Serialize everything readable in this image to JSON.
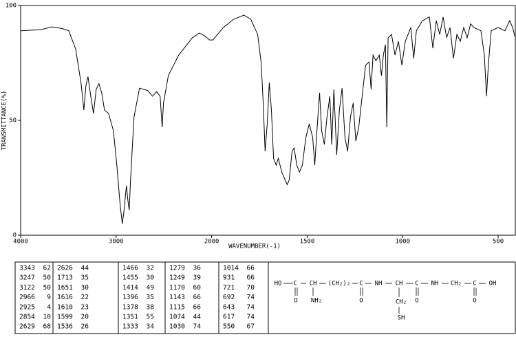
{
  "chart_data": {
    "type": "line",
    "x_label": "WAVENUMBER(-1)",
    "y_label": "TRANSMITTANCE(%)",
    "xlim": [
      4000,
      410
    ],
    "x_scale_change": 2000,
    "x_scale_factor": 2,
    "ylim": [
      0,
      100
    ],
    "xticks": [
      4000,
      3000,
      2000,
      1500,
      1000,
      500
    ],
    "yticks": [
      0,
      50,
      100
    ],
    "series": [
      {
        "color": "#000000",
        "x": [
          4000,
          3784,
          3676,
          3568,
          3496,
          3424,
          3367,
          3338,
          3317,
          3295,
          3266,
          3237,
          3209,
          3180,
          3151,
          3122,
          3079,
          3029,
          2993,
          2957,
          2935,
          2921,
          2892,
          2878,
          2863,
          2849,
          2813,
          2755,
          2669,
          2619,
          2576,
          2540,
          2518,
          2504,
          2453,
          2345,
          2201,
          2129,
          2072,
          2022,
          1993,
          1939,
          1885,
          1831,
          1795,
          1759,
          1741,
          1730,
          1720,
          1709,
          1698,
          1687,
          1676,
          1662,
          1651,
          1633,
          1615,
          1604,
          1594,
          1579,
          1568,
          1554,
          1540,
          1525,
          1507,
          1489,
          1471,
          1460,
          1450,
          1435,
          1424,
          1410,
          1396,
          1381,
          1371,
          1360,
          1345,
          1331,
          1317,
          1302,
          1288,
          1273,
          1259,
          1245,
          1230,
          1212,
          1194,
          1176,
          1165,
          1155,
          1140,
          1122,
          1111,
          1101,
          1090,
          1083,
          1076,
          1058,
          1040,
          1022,
          1004,
          986,
          957,
          942,
          928,
          896,
          860,
          842,
          824,
          806,
          788,
          770,
          752,
          734,
          716,
          698,
          680,
          662,
          644,
          626,
          590,
          572,
          561,
          550,
          536,
          500,
          464,
          439,
          424,
          410
        ],
        "values": [
          89,
          89.5,
          90.7,
          90,
          89,
          81,
          66,
          54.5,
          65,
          69,
          60.5,
          53,
          63.5,
          66,
          62,
          54.5,
          53,
          45.5,
          30.5,
          12.6,
          5,
          9.6,
          21.6,
          15.6,
          11,
          24.5,
          51.5,
          64,
          63,
          60.5,
          62.5,
          60.5,
          47,
          57.5,
          69.5,
          78.4,
          86,
          88,
          86.8,
          85,
          85,
          90.4,
          94,
          95.8,
          94,
          87.4,
          75.4,
          57.5,
          36.5,
          48.5,
          66.5,
          54.5,
          33.5,
          30.5,
          33.5,
          27.5,
          24,
          22,
          24,
          36.5,
          38,
          30.5,
          27.5,
          30.5,
          42.5,
          48.5,
          42.5,
          30.5,
          44,
          62,
          45.5,
          39.5,
          51.5,
          60.5,
          39.5,
          63.5,
          35,
          54.5,
          64,
          42.5,
          36.5,
          51.5,
          57.5,
          41,
          47,
          60.5,
          74,
          75.4,
          63.5,
          78.4,
          76,
          78.4,
          69.5,
          78.4,
          83,
          47,
          86,
          87.4,
          78.4,
          84.4,
          74,
          84.4,
          90.4,
          77,
          89,
          93.4,
          95,
          81.4,
          93.4,
          87.4,
          95,
          86,
          90.4,
          77,
          87.4,
          84.4,
          90.4,
          86,
          92,
          90.4,
          89,
          78.4,
          60.5,
          75.4,
          89,
          90.4,
          89,
          93.4,
          90.4,
          86
        ]
      }
    ]
  },
  "peak_table": {
    "columns": [
      [
        [
          3343,
          62
        ],
        [
          3247,
          50
        ],
        [
          3122,
          50
        ],
        [
          2966,
          9
        ],
        [
          2925,
          4
        ],
        [
          2854,
          10
        ],
        [
          2629,
          68
        ]
      ],
      [
        [
          2626,
          44
        ],
        [
          1713,
          35
        ],
        [
          1651,
          30
        ],
        [
          1616,
          22
        ],
        [
          1610,
          23
        ],
        [
          1599,
          20
        ],
        [
          1536,
          26
        ]
      ],
      [
        [
          1466,
          32
        ],
        [
          1455,
          30
        ],
        [
          1414,
          49
        ],
        [
          1396,
          35
        ],
        [
          1378,
          38
        ],
        [
          1351,
          55
        ],
        [
          1333,
          34
        ]
      ],
      [
        [
          1279,
          36
        ],
        [
          1249,
          39
        ],
        [
          1170,
          60
        ],
        [
          1143,
          66
        ],
        [
          1115,
          66
        ],
        [
          1074,
          44
        ],
        [
          1030,
          74
        ]
      ],
      [
        [
          1014,
          66
        ],
        [
          931,
          66
        ],
        [
          721,
          70
        ],
        [
          692,
          74
        ],
        [
          643,
          74
        ],
        [
          617,
          74
        ],
        [
          550,
          67
        ]
      ]
    ]
  },
  "structure": {
    "main": [
      "HO",
      "C",
      "CH",
      "(CH₂)₂",
      "C",
      "NH",
      "CH",
      "C",
      "NH",
      "CH₂",
      "C",
      "OH"
    ],
    "below": [
      "O",
      "NH₂",
      "O",
      "CH₂",
      "O",
      "O",
      "SH"
    ]
  }
}
